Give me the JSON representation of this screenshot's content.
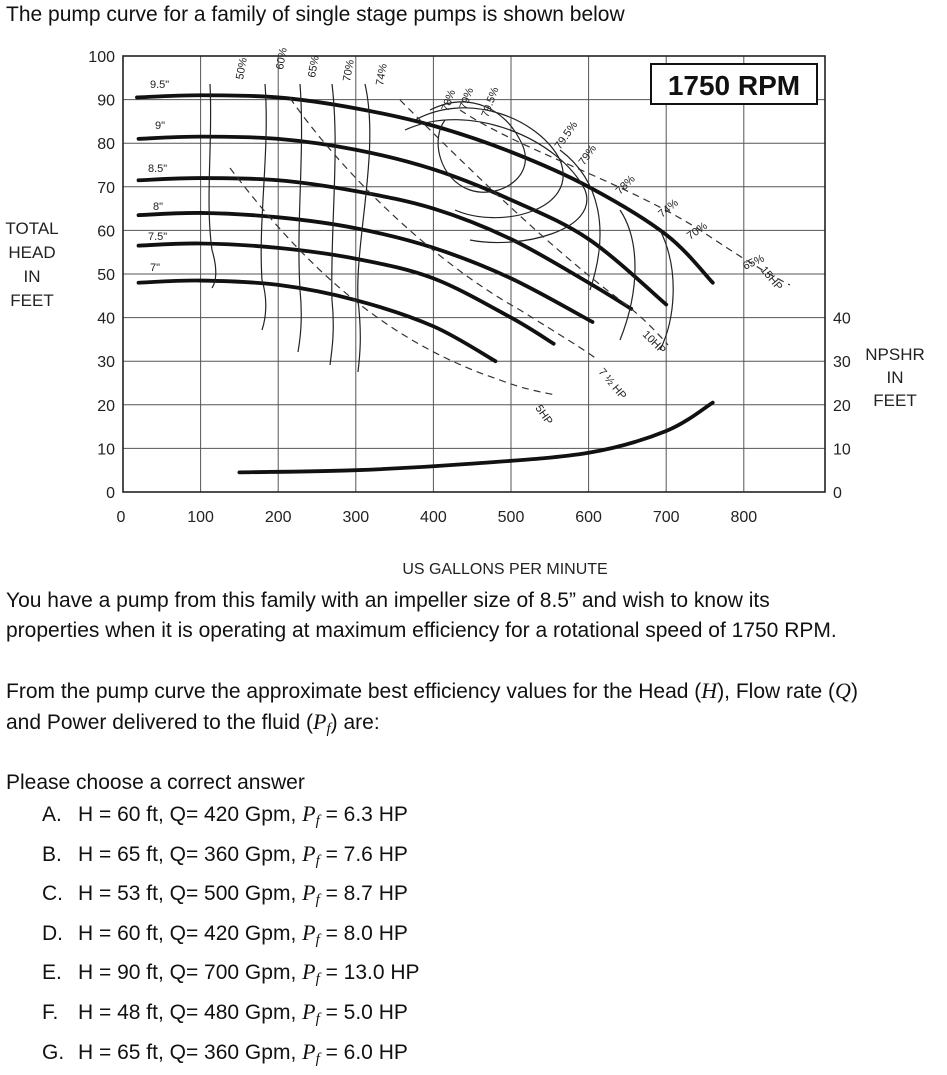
{
  "question": {
    "intro": "The pump curve for a family of single stage pumps is shown below",
    "p1_line1": "You have a pump from this family with an impeller size of 8.5” and wish to know its",
    "p1_line2": "properties when it is operating at maximum efficiency for a rotational speed of 1750 RPM.",
    "p2_line1_a": "From the pump curve the approximate best efficiency values for the Head (",
    "p2_H": "H",
    "p2_line1_b": "), Flow rate (",
    "p2_Q": "Q",
    "p2_line1_c": ")",
    "p2_line2_a": "and Power delivered to the fluid (",
    "p2_P": "P",
    "p2_f": "f",
    "p2_line2_b": ") are:",
    "prompt": "Please choose a correct answer"
  },
  "options": [
    {
      "letter": "A.",
      "head": "H = 60 ft, Q= 420 Gpm, ",
      "power": " = 6.3 HP"
    },
    {
      "letter": "B.",
      "head": "H = 65 ft, Q= 360 Gpm, ",
      "power": " = 7.6 HP"
    },
    {
      "letter": "C.",
      "head": "H = 53 ft, Q= 500 Gpm, ",
      "power": " = 8.7 HP"
    },
    {
      "letter": "D.",
      "head": "H = 60 ft, Q= 420 Gpm, ",
      "power": " = 8.0 HP"
    },
    {
      "letter": "E.",
      "head": "H = 90 ft, Q= 700 Gpm, ",
      "power": " = 13.0 HP"
    },
    {
      "letter": "F.",
      "head": "H = 48 ft, Q= 480 Gpm, ",
      "power": " = 5.0 HP"
    },
    {
      "letter": "G.",
      "head": "H = 65 ft, Q= 360 Gpm, ",
      "power": " = 6.0 HP"
    }
  ],
  "power_symbol": "P",
  "power_sub": "f",
  "chart_data": {
    "type": "line",
    "rpm_label": "1750 RPM",
    "xlabel": "US GALLONS PER MINUTE",
    "ylabel": [
      "TOTAL",
      "HEAD",
      "IN",
      "FEET"
    ],
    "y2label": [
      "NPSHR",
      "IN",
      "FEET"
    ],
    "xlim": [
      0,
      900
    ],
    "ylim": [
      0,
      100
    ],
    "x_ticks": [
      0,
      100,
      200,
      300,
      400,
      500,
      600,
      700,
      800
    ],
    "y_ticks": [
      0,
      10,
      20,
      30,
      40,
      50,
      60,
      70,
      80,
      90,
      100
    ],
    "y2_ticks": [
      0,
      10,
      20,
      30,
      40
    ],
    "grid": true,
    "head_curves": [
      {
        "name": "9.5\"",
        "x": [
          0,
          100,
          200,
          300,
          400,
          500,
          600,
          700,
          760
        ],
        "y": [
          90.5,
          91,
          90.5,
          88,
          84,
          78,
          70,
          59,
          48
        ]
      },
      {
        "name": "9\"",
        "x": [
          0,
          100,
          200,
          300,
          400,
          500,
          600,
          700
        ],
        "y": [
          81,
          81.5,
          81,
          78.5,
          74,
          67,
          58,
          43
        ]
      },
      {
        "name": "8.5\"",
        "x": [
          0,
          100,
          200,
          300,
          400,
          500,
          600,
          655
        ],
        "y": [
          71.5,
          72,
          71.5,
          69,
          65,
          58,
          48,
          42
        ]
      },
      {
        "name": "8\"",
        "x": [
          0,
          100,
          200,
          300,
          400,
          500,
          605
        ],
        "y": [
          63.5,
          64,
          63,
          60.5,
          56,
          49,
          39
        ]
      },
      {
        "name": "7.5\"",
        "x": [
          0,
          100,
          200,
          300,
          400,
          500,
          555
        ],
        "y": [
          56.5,
          57,
          56,
          53.5,
          49,
          40,
          34
        ]
      },
      {
        "name": "7\"",
        "x": [
          0,
          100,
          200,
          300,
          400,
          480
        ],
        "y": [
          48,
          48.5,
          47.5,
          44,
          38,
          30
        ]
      }
    ],
    "efficiency_labels": [
      "50%",
      "60%",
      "65%",
      "70%",
      "74%",
      "78%",
      "79%",
      "79.5%",
      "79.5%",
      "79%",
      "78%",
      "74%",
      "70%",
      "65%"
    ],
    "power_labels": [
      "5HP",
      "7 ½ HP",
      "10HP",
      "15HP"
    ],
    "npshr_curve": {
      "x": [
        150,
        300,
        450,
        600,
        700,
        760
      ],
      "y": [
        4.5,
        5,
        6.5,
        9,
        14,
        20.5
      ]
    }
  }
}
